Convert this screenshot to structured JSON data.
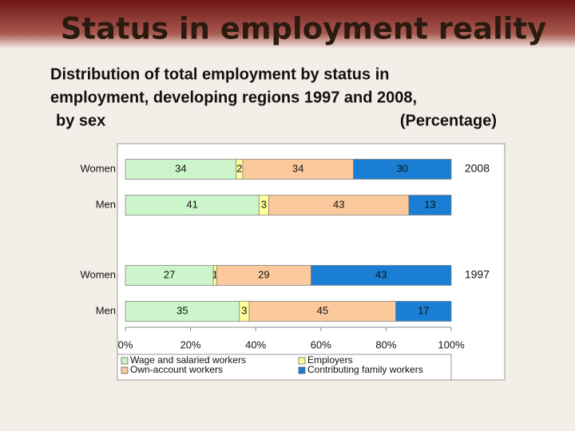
{
  "chart_data": {
    "type": "stacked-barh",
    "title": "Status in employment reality",
    "subtitle": [
      "Distribution of total employment by status in",
      "employment,  developing regions 1997 and 2008,",
      "by sex"
    ],
    "unit_note": "(Percentage)",
    "categories": [
      "Women",
      "Men",
      "Women",
      "Men"
    ],
    "groups": [
      "2008",
      "1997"
    ],
    "series": [
      {
        "name": "Wage and salaried workers",
        "color": "#ccf5cc",
        "values": [
          34,
          41,
          27,
          35
        ]
      },
      {
        "name": "Employers",
        "color": "#ffff99",
        "values": [
          2,
          3,
          1,
          3
        ]
      },
      {
        "name": "Own-account workers",
        "color": "#fcc99c",
        "values": [
          34,
          43,
          29,
          45
        ]
      },
      {
        "name": "Contributing family workers",
        "color": "#1a7fd4",
        "values": [
          30,
          13,
          43,
          17
        ]
      }
    ],
    "xlim": [
      0,
      100
    ],
    "xticks": [
      {
        "value": 0,
        "label": "0%"
      },
      {
        "value": 20,
        "label": "20%"
      },
      {
        "value": 40,
        "label": "40%"
      },
      {
        "value": 60,
        "label": "60%"
      },
      {
        "value": 80,
        "label": "80%"
      },
      {
        "value": 100,
        "label": "100%"
      }
    ]
  }
}
